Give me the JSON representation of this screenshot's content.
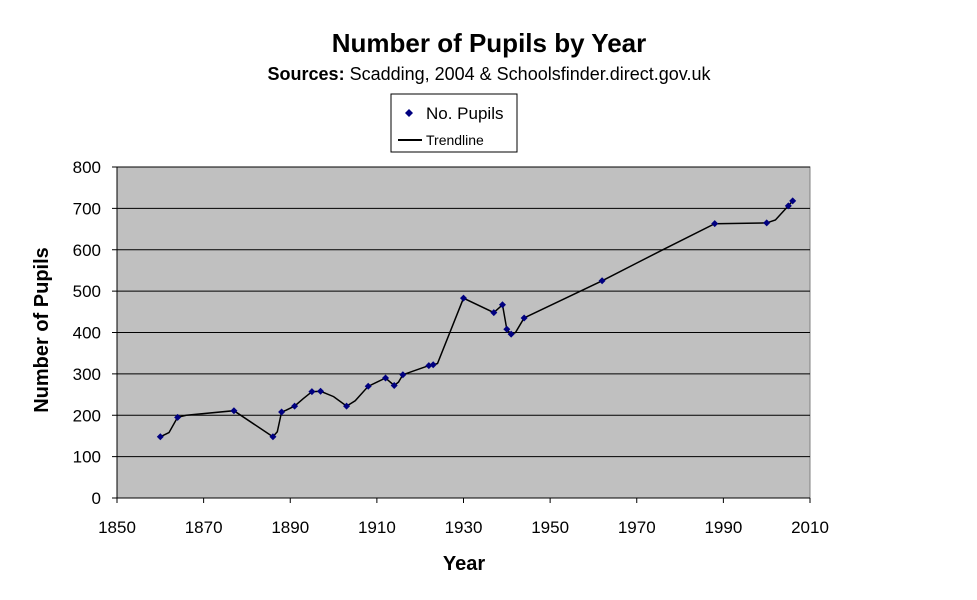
{
  "chart_data": {
    "type": "scatter",
    "title": "Number of Pupils by Year",
    "subtitle_bold": "Sources:",
    "subtitle_rest": " Scadding, 2004 & Schoolsfinder.direct.gov.uk",
    "xlabel": "Year",
    "ylabel": "Number of Pupils",
    "xlim": [
      1850,
      2010
    ],
    "ylim": [
      0,
      800
    ],
    "xticks": [
      1850,
      1870,
      1890,
      1910,
      1930,
      1950,
      1970,
      1990,
      2010
    ],
    "yticks": [
      0,
      100,
      200,
      300,
      400,
      500,
      600,
      700,
      800
    ],
    "grid": "horizontal",
    "plot_background": "#c0c0c0",
    "marker_color": "#000080",
    "trendline_color": "#000000",
    "legend_position": "top-center",
    "legend": [
      "No. Pupils",
      "Trendline"
    ],
    "series": [
      {
        "name": "No. Pupils",
        "points": [
          [
            1860,
            148
          ],
          [
            1864,
            195
          ],
          [
            1877,
            211
          ],
          [
            1886,
            148
          ],
          [
            1888,
            208
          ],
          [
            1891,
            222
          ],
          [
            1895,
            257
          ],
          [
            1897,
            258
          ],
          [
            1903,
            222
          ],
          [
            1908,
            270
          ],
          [
            1912,
            290
          ],
          [
            1914,
            272
          ],
          [
            1916,
            298
          ],
          [
            1922,
            320
          ],
          [
            1923,
            322
          ],
          [
            1930,
            483
          ],
          [
            1937,
            448
          ],
          [
            1939,
            467
          ],
          [
            1940,
            408
          ],
          [
            1941,
            396
          ],
          [
            1944,
            435
          ],
          [
            1962,
            525
          ],
          [
            1988,
            663
          ],
          [
            2000,
            665
          ],
          [
            2005,
            706
          ],
          [
            2006,
            718
          ]
        ]
      },
      {
        "name": "Trendline",
        "points": [
          [
            1860,
            148
          ],
          [
            1862,
            158
          ],
          [
            1864,
            195
          ],
          [
            1866,
            200
          ],
          [
            1877,
            211
          ],
          [
            1886,
            148
          ],
          [
            1887,
            160
          ],
          [
            1888,
            208
          ],
          [
            1889,
            212
          ],
          [
            1891,
            222
          ],
          [
            1893,
            240
          ],
          [
            1895,
            257
          ],
          [
            1897,
            258
          ],
          [
            1900,
            245
          ],
          [
            1903,
            222
          ],
          [
            1905,
            235
          ],
          [
            1908,
            270
          ],
          [
            1912,
            290
          ],
          [
            1914,
            272
          ],
          [
            1915,
            280
          ],
          [
            1916,
            298
          ],
          [
            1922,
            320
          ],
          [
            1923,
            322
          ],
          [
            1924,
            325
          ],
          [
            1930,
            483
          ],
          [
            1937,
            448
          ],
          [
            1939,
            467
          ],
          [
            1940,
            408
          ],
          [
            1941,
            396
          ],
          [
            1942,
            400
          ],
          [
            1944,
            435
          ],
          [
            1962,
            525
          ],
          [
            1976,
            600
          ],
          [
            1988,
            663
          ],
          [
            2000,
            665
          ],
          [
            2002,
            672
          ],
          [
            2005,
            706
          ],
          [
            2006,
            718
          ]
        ]
      }
    ]
  }
}
